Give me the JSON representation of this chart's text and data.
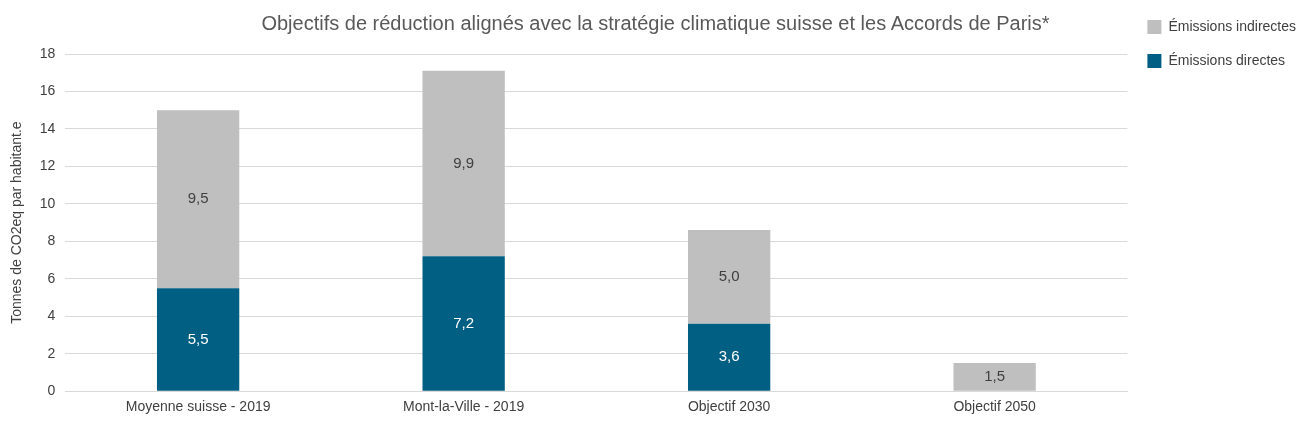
{
  "chart_data": {
    "type": "bar",
    "title": "Objectifs de réduction alignés avec la stratégie climatique suisse et les Accords de Paris*",
    "ylabel": "Tonnes de CO2eq par habitant.e",
    "categories": [
      "Moyenne suisse - 2019",
      "Mont-la-Ville - 2019",
      "Objectif 2030",
      "Objectif 2050"
    ],
    "stacked": true,
    "series": [
      {
        "name": "Émissions directes",
        "color": "#005f83",
        "values": [
          5.5,
          7.2,
          3.6,
          null
        ],
        "value_labels": [
          "5,5",
          "7,2",
          "3,6",
          null
        ]
      },
      {
        "name": "Émissions indirectes",
        "color": "#bfbfbf",
        "values": [
          9.5,
          9.9,
          5.0,
          1.5
        ],
        "value_labels": [
          "9,5",
          "9,9",
          "5,0",
          "1,5"
        ]
      }
    ],
    "ylim": [
      0,
      18
    ],
    "yticks": [
      0,
      2,
      4,
      6,
      8,
      10,
      12,
      14,
      16,
      18
    ],
    "grid": "y",
    "legend": "top right"
  }
}
